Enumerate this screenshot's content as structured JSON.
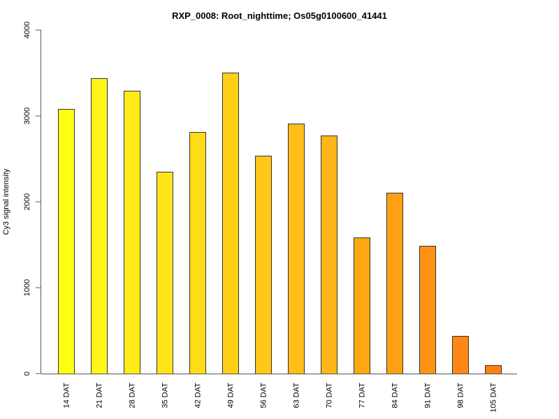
{
  "chart_data": {
    "type": "bar",
    "title": "RXP_0008: Root_nighttime; Os05g0100600_41441",
    "xlabel": "",
    "ylabel": "Cy3 signal intensity",
    "ylim": [
      0,
      4000
    ],
    "yticks": [
      0,
      1000,
      2000,
      3000,
      4000
    ],
    "grid": false,
    "categories": [
      "14 DAT",
      "21 DAT",
      "28 DAT",
      "35 DAT",
      "42 DAT",
      "49 DAT",
      "56 DAT",
      "63 DAT",
      "70 DAT",
      "77 DAT",
      "84 DAT",
      "91 DAT",
      "98 DAT",
      "105 DAT"
    ],
    "values": [
      3081,
      3439,
      3293,
      2350,
      2813,
      3504,
      2537,
      2911,
      2772,
      1585,
      2106,
      1488,
      439,
      98
    ],
    "colors": [
      "#FFFF14",
      "#FFF518",
      "#FFEB18",
      "#FFE518",
      "#FFDC18",
      "#FFD018",
      "#FFC818",
      "#FFBE18",
      "#FFB618",
      "#FFA814",
      "#FFA014",
      "#FF9314",
      "#FF8814",
      "#FF8010"
    ]
  }
}
